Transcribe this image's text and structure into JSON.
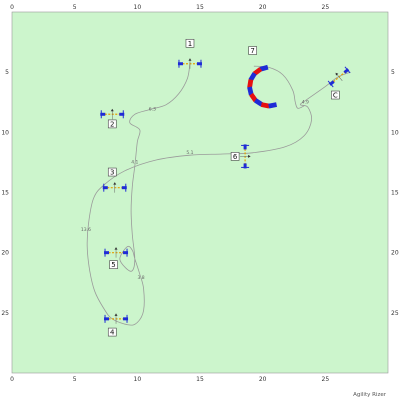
{
  "chart_data": {
    "type": "diagram",
    "xlim": [
      0,
      30
    ],
    "ylim": [
      30,
      0
    ],
    "x_ticks": [
      0,
      5,
      10,
      15,
      20,
      25
    ],
    "y_ticks": [
      5,
      10,
      15,
      20,
      25
    ],
    "background_color": "#ccf5cc",
    "path_color": "#9a9a9a",
    "credit": "Agility Rizer",
    "path_points": [
      [
        14.2,
        4.2
      ],
      [
        14.0,
        5.5
      ],
      [
        13.3,
        6.8
      ],
      [
        12.3,
        7.7
      ],
      [
        11.0,
        8.1
      ],
      [
        9.8,
        8.5
      ],
      [
        9.4,
        9.2
      ],
      [
        10.2,
        9.8
      ],
      [
        10.0,
        10.8
      ],
      [
        9.8,
        12.8
      ],
      [
        9.6,
        14.5
      ],
      [
        9.5,
        16.5
      ],
      [
        9.6,
        18.5
      ],
      [
        9.8,
        20.5
      ],
      [
        9.6,
        21.5
      ],
      [
        9.1,
        21.3
      ],
      [
        8.6,
        20.5
      ],
      [
        9.2,
        19.5
      ],
      [
        9.6,
        19.8
      ],
      [
        9.8,
        20.5
      ],
      [
        10.2,
        21.8
      ],
      [
        10.5,
        23.0
      ],
      [
        10.5,
        24.8
      ],
      [
        10.0,
        25.8
      ],
      [
        9.3,
        26.0
      ],
      [
        8.0,
        25.5
      ],
      [
        7.3,
        24.6
      ],
      [
        6.6,
        23.2
      ],
      [
        6.2,
        21.5
      ],
      [
        6.0,
        19.5
      ],
      [
        6.1,
        17.6
      ],
      [
        6.5,
        15.5
      ],
      [
        7.3,
        14.4
      ],
      [
        9.0,
        13.2
      ],
      [
        11.5,
        12.3
      ],
      [
        14.2,
        11.9
      ],
      [
        16.8,
        11.8
      ],
      [
        19.2,
        11.7
      ],
      [
        21.8,
        11.2
      ],
      [
        23.3,
        10.3
      ],
      [
        23.9,
        9.0
      ],
      [
        23.6,
        7.9
      ],
      [
        23.0,
        7.7
      ],
      [
        23.5,
        7.3
      ],
      [
        25.0,
        6.2
      ],
      [
        26.0,
        5.4
      ],
      [
        27.0,
        5.0
      ]
    ],
    "path_points_b": [
      [
        19.3,
        4.5
      ],
      [
        20.5,
        4.6
      ],
      [
        21.6,
        5.2
      ],
      [
        22.4,
        6.5
      ],
      [
        22.6,
        7.5
      ],
      [
        22.8,
        8.0
      ],
      [
        23.3,
        7.8
      ]
    ],
    "segment_labels": [
      {
        "x": 11.2,
        "y": 8.2,
        "text": "6.3"
      },
      {
        "x": 9.8,
        "y": 12.6,
        "text": "4.1"
      },
      {
        "x": 14.2,
        "y": 11.8,
        "text": "5.1"
      },
      {
        "x": 23.4,
        "y": 7.6,
        "text": "4.9"
      },
      {
        "x": 5.9,
        "y": 18.2,
        "text": "13.6"
      },
      {
        "x": 10.3,
        "y": 22.2,
        "text": "3.8"
      }
    ],
    "obstacles": [
      {
        "label": "1",
        "x": 14.2,
        "y": 4.3,
        "lx": 14.2,
        "ly": 2.6,
        "rot": 0
      },
      {
        "label": "2",
        "x": 8.0,
        "y": 8.5,
        "lx": 8.0,
        "ly": 9.3,
        "rot": 0
      },
      {
        "label": "3",
        "x": 8.2,
        "y": 14.6,
        "lx": 8.0,
        "ly": 13.3,
        "rot": 0
      },
      {
        "label": "4",
        "x": 8.3,
        "y": 25.5,
        "lx": 8.0,
        "ly": 26.6,
        "rot": 0
      },
      {
        "label": "5",
        "x": 8.3,
        "y": 20.0,
        "lx": 8.1,
        "ly": 21.0,
        "rot": 0
      },
      {
        "label": "6",
        "x": 18.6,
        "y": 12.0,
        "lx": 17.8,
        "ly": 12.0,
        "rot": 90
      },
      {
        "label": "C",
        "x": 26.1,
        "y": 5.4,
        "lx": 25.8,
        "ly": 6.9,
        "rot": -40
      }
    ],
    "tunnel": {
      "label": "7",
      "lx": 19.2,
      "ly": 3.2
    }
  }
}
